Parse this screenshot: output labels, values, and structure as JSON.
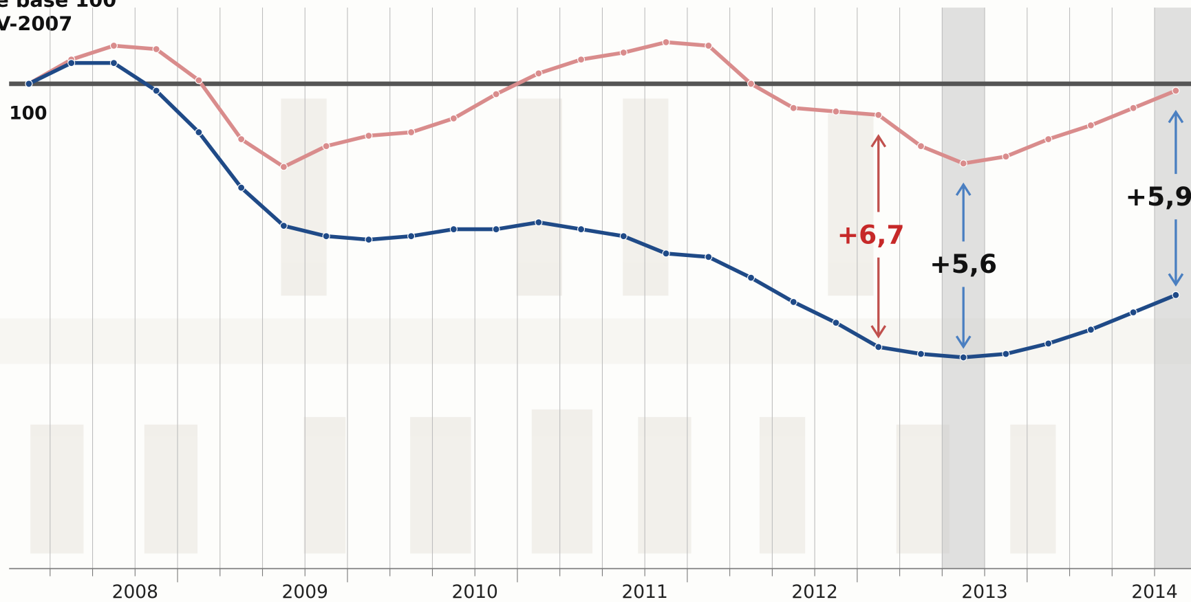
{
  "chart_data": {
    "type": "line",
    "title_lines": [
      "e base 100",
      "V-2007"
    ],
    "years": [
      "2008",
      "2009",
      "2010",
      "2011",
      "2012",
      "2013",
      "2014"
    ],
    "ylim": [
      86,
      102.2
    ],
    "yticks": [
      100
    ],
    "series": [
      {
        "color": "#d98c8c",
        "values": [
          100,
          100.7,
          101.1,
          101.0,
          100.1,
          98.4,
          97.6,
          98.2,
          98.5,
          98.6,
          99.0,
          99.7,
          100.3,
          100.7,
          100.9,
          101.2,
          101.1,
          100.0,
          99.3,
          99.2,
          99.1,
          98.2,
          97.7,
          97.9,
          98.4,
          98.8,
          99.3,
          99.8
        ]
      },
      {
        "color": "#1f4a87",
        "values": [
          100,
          100.6,
          100.6,
          99.8,
          98.6,
          97.0,
          95.9,
          95.6,
          95.5,
          95.6,
          95.8,
          95.8,
          96.0,
          95.8,
          95.6,
          95.1,
          95.0,
          94.4,
          93.7,
          93.1,
          92.4,
          92.2,
          92.1,
          92.2,
          92.5,
          92.9,
          93.4,
          93.9
        ]
      }
    ],
    "annotations": [
      {
        "text": "+6,7",
        "color": "#c62828"
      },
      {
        "text": "+5,6",
        "color": "#111111"
      },
      {
        "text": "+5,9",
        "color": "#111111"
      }
    ],
    "arrow_color": "#4a7fc1"
  }
}
